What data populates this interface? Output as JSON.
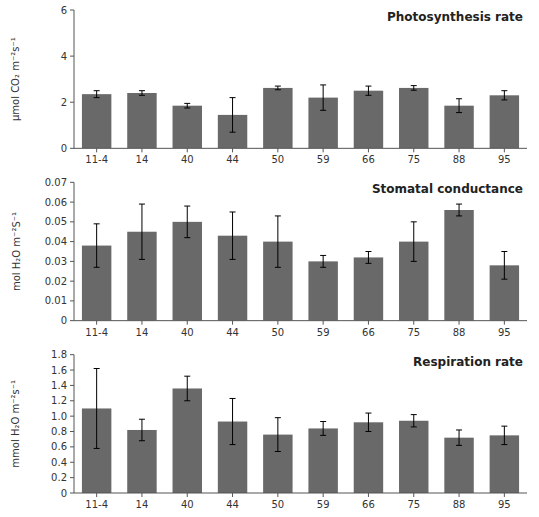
{
  "chart_data": [
    {
      "type": "bar",
      "title": "Photosynthesis rate",
      "ylabel": "μmol CO₂ m⁻²s⁻¹",
      "categories": [
        "11-4",
        "14",
        "40",
        "44",
        "50",
        "59",
        "66",
        "75",
        "88",
        "95"
      ],
      "values": [
        2.35,
        2.4,
        1.85,
        1.45,
        2.62,
        2.2,
        2.5,
        2.62,
        1.85,
        2.3
      ],
      "errors": [
        0.15,
        0.1,
        0.1,
        0.75,
        0.08,
        0.55,
        0.2,
        0.1,
        0.3,
        0.2
      ],
      "color": "#696969",
      "ylim": [
        0,
        6
      ],
      "yticks": [
        0,
        2,
        4,
        6
      ],
      "grid": false
    },
    {
      "type": "bar",
      "title": "Stomatal conductance",
      "ylabel": "mol H₂O m⁻²S⁻¹",
      "categories": [
        "11-4",
        "14",
        "40",
        "44",
        "50",
        "59",
        "66",
        "75",
        "88",
        "95"
      ],
      "values": [
        0.038,
        0.045,
        0.05,
        0.043,
        0.04,
        0.03,
        0.032,
        0.04,
        0.056,
        0.028
      ],
      "errors": [
        0.011,
        0.014,
        0.008,
        0.012,
        0.013,
        0.003,
        0.003,
        0.01,
        0.003,
        0.007
      ],
      "color": "#696969",
      "ylim": [
        0,
        0.07
      ],
      "yticks": [
        0,
        0.01,
        0.02,
        0.03,
        0.04,
        0.05,
        0.06,
        0.07
      ],
      "grid": false
    },
    {
      "type": "bar",
      "title": "Respiration rate",
      "ylabel": "mmol H₂O m⁻²s⁻¹",
      "categories": [
        "11-4",
        "14",
        "40",
        "44",
        "50",
        "59",
        "66",
        "75",
        "88",
        "95"
      ],
      "values": [
        1.1,
        0.82,
        1.36,
        0.93,
        0.76,
        0.84,
        0.92,
        0.94,
        0.72,
        0.75
      ],
      "errors": [
        0.52,
        0.14,
        0.16,
        0.3,
        0.22,
        0.09,
        0.12,
        0.08,
        0.1,
        0.12
      ],
      "color": "#696969",
      "ylim": [
        0,
        1.8
      ],
      "yticks": [
        0,
        0.2,
        0.4,
        0.6,
        0.8,
        {
          "value": 1.0,
          "label": "1.0"
        },
        1.2,
        1.4,
        1.6,
        1.8
      ],
      "grid": false
    }
  ]
}
